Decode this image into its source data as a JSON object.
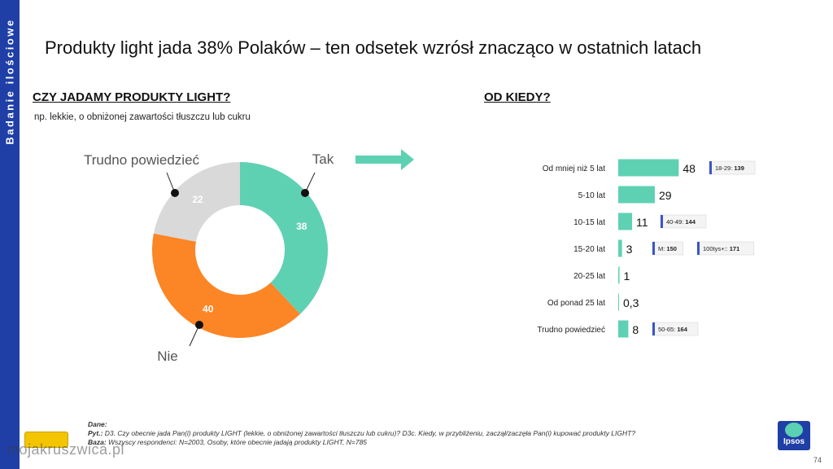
{
  "sidebar": {
    "label": "Badanie ilościowe"
  },
  "title": "Produkty light jada 38% Polaków – ten odsetek wzrósł znacząco w ostatnich latach",
  "left_section": {
    "heading": "CZY JADAMY PRODUKTY LIGHT?",
    "subtitle": "np. lekkie, o obniżonej zawartości tłuszczu lub cukru"
  },
  "right_section": {
    "heading": "OD KIEDY?"
  },
  "chart_data": [
    {
      "type": "pie",
      "categories": [
        "Tak",
        "Nie",
        "Trudno powiedzieć"
      ],
      "values": [
        38,
        40,
        22
      ],
      "colors": [
        "#5fd1b3",
        "#fc8525",
        "#d9d9d9"
      ],
      "donut": true
    },
    {
      "type": "bar",
      "orientation": "horizontal",
      "categories": [
        "Od mniej niż 5 lat",
        "5-10 lat",
        "10-15 lat",
        "15-20 lat",
        "20-25 lat",
        "Od ponad 25 lat",
        "Trudno powiedzieć"
      ],
      "values": [
        48,
        29,
        11,
        3,
        1,
        0.3,
        8
      ],
      "value_labels": [
        "48",
        "29",
        "11",
        "3",
        "1",
        "0,3",
        "8"
      ],
      "color": "#5fd1b3",
      "annotations": [
        {
          "category": "Od mniej niż 5 lat",
          "items": [
            {
              "label": "18-29:",
              "value": "139"
            }
          ]
        },
        {
          "category": "10-15 lat",
          "items": [
            {
              "label": "40-49:",
              "value": "144"
            }
          ]
        },
        {
          "category": "15-20 lat",
          "items": [
            {
              "label": "M:",
              "value": "150"
            },
            {
              "label": "100tys+::",
              "value": "171"
            }
          ]
        },
        {
          "category": "Trudno powiedzieć",
          "items": [
            {
              "label": "50-65:",
              "value": "164"
            }
          ]
        }
      ]
    }
  ],
  "footer": {
    "dane_label": "Dane:",
    "pyt_label": "Pyt.:",
    "pyt_text": "D3. Czy obecnie jada Pan(i) produkty LIGHT (lekkie, o obniżonej zawartości tłuszczu lub cukru)? D3c. Kiedy, w przybliżeniu, zaczął/zaczęła Pan(i) kupować produkty LIGHT?",
    "baza_label": "Baza:",
    "baza_text": "Wszyscy respondenci: N=2003, Osoby, które obecnie jadają produkty LIGHT, N=785"
  },
  "logo": {
    "text": "Ipsos"
  },
  "watermark": "mojakruszwica.pl",
  "page_number": "74"
}
